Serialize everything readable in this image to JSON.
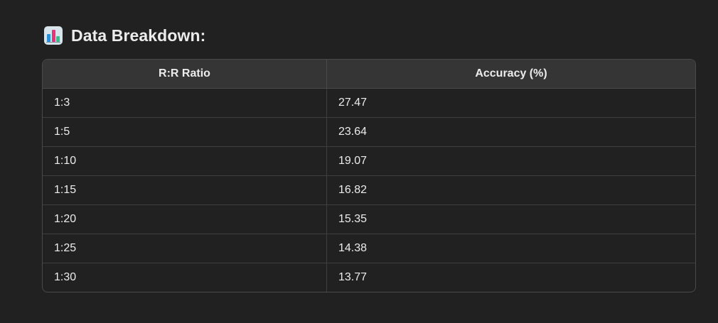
{
  "heading": {
    "icon": "bar-chart-icon",
    "title": "Data Breakdown:"
  },
  "table": {
    "columns": [
      "R:R Ratio",
      "Accuracy (%)"
    ],
    "rows": [
      [
        "1:3",
        "27.47"
      ],
      [
        "1:5",
        "23.64"
      ],
      [
        "1:10",
        "19.07"
      ],
      [
        "1:15",
        "16.82"
      ],
      [
        "1:20",
        "15.35"
      ],
      [
        "1:25",
        "14.38"
      ],
      [
        "1:30",
        "13.77"
      ]
    ]
  },
  "colors": {
    "background": "#212121",
    "header_background": "#353535",
    "text": "#ececec",
    "border": "#4a4a4a"
  }
}
